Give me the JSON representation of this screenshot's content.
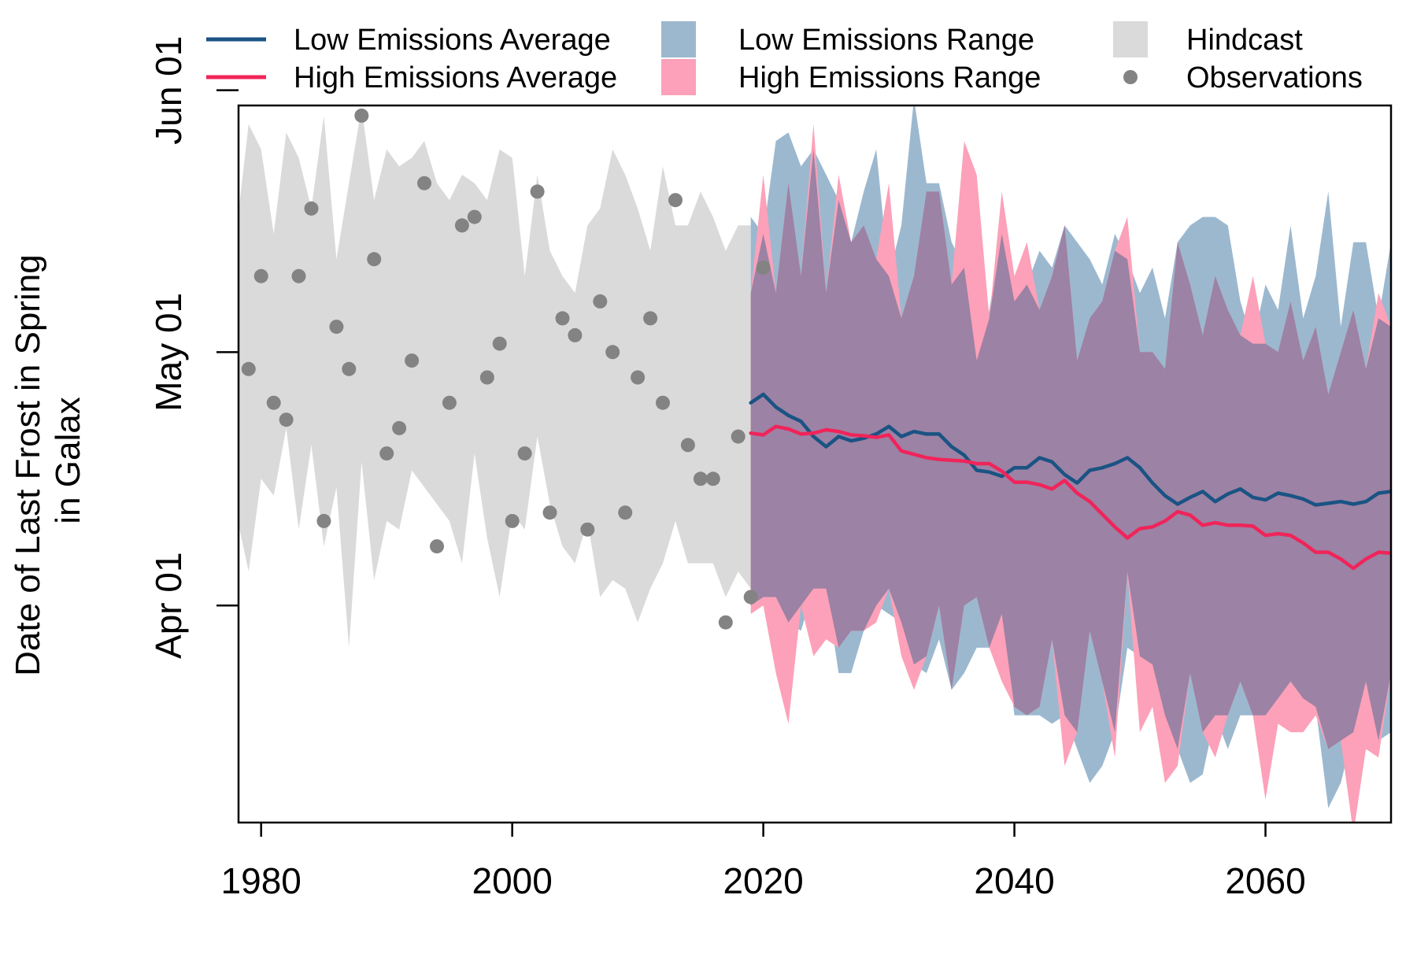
{
  "chart_data": {
    "type": "area",
    "ylabel_lines": [
      "Date of Last Frost in Spring",
      "in Galax"
    ],
    "xlim": [
      1978.2,
      2070
    ],
    "ylim": [
      65.3,
      150.2
    ],
    "x_ticks": [
      1980,
      2000,
      2020,
      2040,
      2060
    ],
    "y_ticks": [
      {
        "value": 91,
        "label": "Apr 01"
      },
      {
        "value": 121,
        "label": "May 01"
      },
      {
        "value": 152,
        "label": "Jun 01"
      }
    ],
    "colors": {
      "low_avg": "#1a5384",
      "high_avg": "#f0245a",
      "low_range": "#9cb8cf",
      "high_range": "#fca1b9",
      "overlap": "#9c82a4",
      "hindcast": "#dadada",
      "observations": "#838383"
    },
    "legend": [
      {
        "label": "Low Emissions Average",
        "kind": "line",
        "color_key": "low_avg"
      },
      {
        "label": "High Emissions Average",
        "kind": "line",
        "color_key": "high_avg"
      },
      {
        "label": "Low Emissions Range",
        "kind": "box",
        "color_key": "low_range"
      },
      {
        "label": "High Emissions Range",
        "kind": "box",
        "color_key": "high_range"
      },
      {
        "label": "Hindcast",
        "kind": "box",
        "color_key": "hindcast"
      },
      {
        "label": "Observations",
        "kind": "dot",
        "color_key": "observations"
      }
    ],
    "hindcast_range": {
      "x": [
        1978,
        1979,
        1980,
        1981,
        1982,
        1983,
        1984,
        1985,
        1986,
        1987,
        1988,
        1989,
        1990,
        1991,
        1992,
        1993,
        1994,
        1995,
        1996,
        1997,
        1998,
        1999,
        2000,
        2001,
        2002,
        2003,
        2004,
        2005,
        2006,
        2007,
        2008,
        2009,
        2010,
        2011,
        2012,
        2013,
        2014,
        2015,
        2016,
        2017,
        2018,
        2019
      ],
      "upper": [
        135,
        148,
        145,
        135,
        147,
        144,
        138,
        149,
        132,
        141,
        150,
        139,
        145,
        143,
        144,
        146,
        141,
        139,
        142,
        141,
        139,
        145,
        144,
        130,
        142,
        133,
        130,
        128,
        136,
        138,
        145,
        142,
        138,
        133,
        143,
        136,
        136,
        140,
        137,
        133,
        136,
        136
      ],
      "lower": [
        102,
        95,
        106,
        104,
        112,
        100,
        110,
        98,
        105,
        86,
        108,
        94,
        101,
        100,
        107,
        105,
        103,
        101,
        96,
        109,
        99,
        92,
        102,
        100,
        111,
        103,
        98,
        96,
        101,
        92,
        94,
        93,
        89,
        93,
        96,
        101,
        96,
        96,
        96,
        92,
        95,
        93
      ]
    },
    "observations": {
      "x": [
        1979,
        1980,
        1981,
        1982,
        1983,
        1984,
        1985,
        1986,
        1987,
        1988,
        1989,
        1990,
        1991,
        1992,
        1993,
        1994,
        1995,
        1996,
        1997,
        1998,
        1999,
        2000,
        2001,
        2002,
        2003,
        2004,
        2005,
        2006,
        2007,
        2008,
        2009,
        2010,
        2011,
        2012,
        2013,
        2014,
        2015,
        2016,
        2017,
        2018,
        2019,
        2020
      ],
      "y": [
        119,
        130,
        115,
        113,
        130,
        138,
        101,
        124,
        119,
        149,
        132,
        109,
        112,
        120,
        141,
        98,
        115,
        136,
        137,
        118,
        122,
        101,
        109,
        140,
        102,
        125,
        123,
        100,
        127,
        121,
        102,
        118,
        125,
        115,
        139,
        110,
        106,
        106,
        89,
        111,
        92,
        131
      ]
    },
    "low_emissions": {
      "x": [
        2019,
        2020,
        2021,
        2022,
        2023,
        2024,
        2025,
        2026,
        2027,
        2028,
        2029,
        2030,
        2031,
        2032,
        2033,
        2034,
        2035,
        2036,
        2037,
        2038,
        2039,
        2040,
        2041,
        2042,
        2043,
        2044,
        2045,
        2046,
        2047,
        2048,
        2049,
        2050,
        2051,
        2052,
        2053,
        2054,
        2055,
        2056,
        2057,
        2058,
        2059,
        2060,
        2061,
        2062,
        2063,
        2064,
        2065,
        2066,
        2067,
        2068,
        2069,
        2070
      ],
      "average": [
        115,
        116,
        114.5,
        113.5,
        112.8,
        111,
        109.8,
        111,
        110.5,
        110.8,
        111.3,
        112.2,
        111,
        111.6,
        111.3,
        111.3,
        109.8,
        108.8,
        107,
        106.8,
        106.3,
        107.3,
        107.3,
        108.5,
        108,
        106.5,
        105.5,
        107,
        107.3,
        107.8,
        108.5,
        107.3,
        105.5,
        104,
        103,
        103.8,
        104.5,
        103.3,
        104.2,
        104.8,
        103.8,
        103.5,
        104.3,
        104,
        103.6,
        102.9,
        103.1,
        103.3,
        103,
        103.3,
        104.3,
        104.5
      ],
      "upper": [
        137,
        135,
        146,
        147,
        143,
        145,
        142,
        139,
        134,
        140,
        145,
        130,
        136,
        151,
        141,
        141,
        134,
        131,
        120,
        126,
        135,
        127,
        129,
        133,
        131,
        136,
        134,
        132,
        129,
        135,
        132,
        128,
        131,
        125,
        134,
        136,
        137,
        137,
        136,
        127,
        122,
        129,
        126,
        136,
        125,
        130,
        140,
        124,
        134,
        134,
        125,
        134
      ],
      "lower": [
        91,
        92,
        92,
        89,
        88,
        93,
        93,
        83,
        83,
        88,
        91,
        90,
        89,
        84,
        83,
        87,
        81,
        83,
        86,
        86,
        90,
        78,
        78,
        78,
        77,
        78,
        74,
        70,
        72,
        76,
        86,
        85,
        84,
        78,
        74,
        70,
        71,
        78,
        74,
        78,
        78,
        78,
        80,
        82,
        80,
        79,
        67,
        70,
        76,
        82,
        75,
        76
      ]
    },
    "high_emissions": {
      "x": [
        2019,
        2020,
        2021,
        2022,
        2023,
        2024,
        2025,
        2026,
        2027,
        2028,
        2029,
        2030,
        2031,
        2032,
        2033,
        2034,
        2035,
        2036,
        2037,
        2038,
        2039,
        2040,
        2041,
        2042,
        2043,
        2044,
        2045,
        2046,
        2047,
        2048,
        2049,
        2050,
        2051,
        2052,
        2053,
        2054,
        2055,
        2056,
        2057,
        2058,
        2059,
        2060,
        2061,
        2062,
        2063,
        2064,
        2065,
        2066,
        2067,
        2068,
        2069,
        2070
      ],
      "average": [
        111.4,
        111.2,
        112.2,
        111.9,
        111.3,
        111.4,
        111.8,
        111.6,
        111.2,
        111.1,
        110.9,
        111.2,
        109.3,
        108.9,
        108.5,
        108.3,
        108.2,
        108.1,
        107.8,
        107.8,
        106.9,
        105.6,
        105.6,
        105.3,
        104.8,
        105.8,
        104.3,
        103.3,
        101.8,
        100.3,
        99,
        100.1,
        100.3,
        101,
        102.1,
        101.7,
        100.5,
        100.8,
        100.5,
        100.5,
        100.4,
        99.3,
        99.5,
        99.3,
        98.4,
        97.3,
        97.3,
        96.5,
        95.4,
        96.5,
        97.3,
        97.2
      ],
      "upper": [
        128,
        142,
        128,
        141,
        130,
        148,
        128,
        142,
        134,
        136,
        132,
        141,
        125,
        130,
        140,
        140,
        129,
        146,
        142,
        125,
        140,
        130,
        134,
        126,
        130,
        136,
        120,
        125,
        127,
        133,
        137,
        121,
        121,
        119,
        134,
        129,
        123,
        130,
        126,
        123,
        130,
        122,
        121,
        127,
        120,
        124,
        116,
        121,
        126,
        119,
        128,
        124
      ],
      "lower": [
        90,
        91,
        83,
        77,
        91,
        85,
        87,
        86,
        88,
        88,
        89,
        93,
        85,
        81,
        85,
        91,
        81,
        91,
        92,
        86,
        82,
        79,
        78,
        79,
        87,
        72,
        76,
        88,
        82,
        73,
        95,
        76,
        79,
        70,
        72,
        83,
        76,
        73,
        78,
        82,
        78,
        68,
        77,
        76,
        76,
        78,
        74,
        75,
        64,
        74,
        73,
        83
      ]
    }
  }
}
